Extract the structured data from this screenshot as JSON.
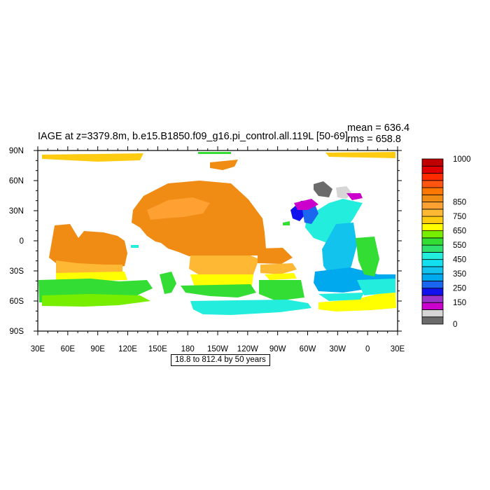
{
  "plot": {
    "title": "IAGE at z=3379.8m, b.e15.B1850.f09_g16.pi_control.all.119L [50-69]",
    "mean_text": "mean = 636.4",
    "rms_text": "rms = 658.8",
    "range_text": "18.8 to 812.4 by 50 years"
  },
  "axes": {
    "y_labels": [
      "90N",
      "60N",
      "30N",
      "0",
      "30S",
      "60S",
      "90S"
    ],
    "x_labels": [
      "30E",
      "60E",
      "90E",
      "120E",
      "150E",
      "180",
      "150W",
      "120W",
      "90W",
      "60W",
      "30W",
      "0",
      "30E"
    ]
  },
  "colorbar": {
    "labels": [
      "1000",
      "850",
      "750",
      "650",
      "550",
      "450",
      "350",
      "250",
      "150",
      "0"
    ],
    "colors": [
      "#6b6b6b",
      "#d6d6d6",
      "#cc00cc",
      "#9933cc",
      "#1111ee",
      "#1a66ee",
      "#00a8ee",
      "#12c3ee",
      "#12e0ee",
      "#23eedd",
      "#2fe06d",
      "#33dd33",
      "#77ee00",
      "#ffff00",
      "#ffcc11",
      "#ffb833",
      "#ffa033",
      "#f08c14",
      "#ff7700",
      "#ff5511",
      "#ff2a00",
      "#e00000",
      "#c00000"
    ]
  }
}
